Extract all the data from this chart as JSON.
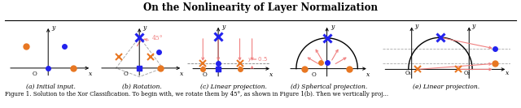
{
  "title": "On the Nonlinearity of Layer Normalization",
  "title_fontsize": 8.5,
  "bg_color": "#ffffff",
  "panels": [
    "(a) Initial input.",
    "(b) Rotation.",
    "(c) Linear projection.",
    "(d) Spherical projection.",
    "(e) Linear projection."
  ],
  "orange_color": "#E87722",
  "blue_color": "#2222ee",
  "red_color": "#F08080",
  "dark_red": "#cc2222",
  "caption": "Figure 1. Solution to the Xor Classification. To begin with, we rotate them by 45°, as shown in Figure 1(b). Then we vertically proj..."
}
